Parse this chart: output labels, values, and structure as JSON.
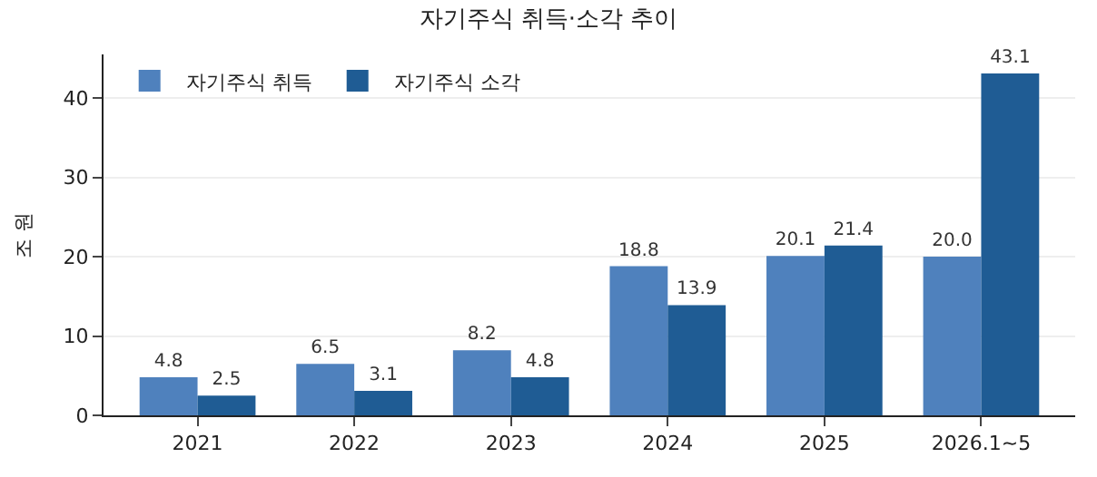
{
  "chart_data": {
    "type": "bar",
    "title": "자기주식 취득·소각 추이",
    "ylabel": "조 원",
    "categories": [
      "2021",
      "2022",
      "2023",
      "2024",
      "2025",
      "2026.1~5"
    ],
    "series": [
      {
        "name": "자기주식 취득",
        "color": "#4f81bd",
        "values": [
          4.8,
          6.5,
          8.2,
          18.8,
          20.1,
          20.0
        ],
        "value_labels": [
          "4.8",
          "6.5",
          "8.2",
          "18.8",
          "20.1",
          "20.0"
        ]
      },
      {
        "name": "자기주식 소각",
        "color": "#1f5c94",
        "values": [
          2.5,
          3.1,
          4.8,
          13.9,
          21.4,
          43.1
        ],
        "value_labels": [
          "2.5",
          "3.1",
          "4.8",
          "13.9",
          "21.4",
          "43.1"
        ]
      }
    ],
    "ylim": [
      0,
      45.5
    ],
    "yticks": [
      0,
      10,
      20,
      30,
      40
    ],
    "grid": "y",
    "legend": "top left"
  }
}
